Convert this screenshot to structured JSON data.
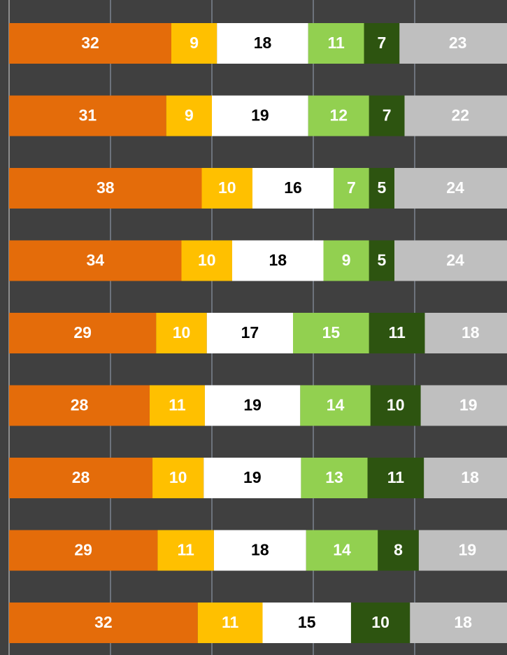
{
  "chart_data": {
    "type": "bar",
    "orientation": "horizontal",
    "stack": "percent",
    "categories": [
      null,
      null,
      null,
      null,
      null,
      null,
      null,
      null,
      null
    ],
    "xlim": [
      0,
      100
    ],
    "xticks": [
      0,
      20,
      40,
      60,
      80,
      100
    ],
    "grid": true,
    "series": [
      {
        "color": "#e46c0a",
        "label_color": "#ffffff",
        "values": [
          32,
          31,
          38,
          34,
          29,
          28,
          28,
          29,
          32
        ]
      },
      {
        "color": "#ffc000",
        "label_color": "#ffffff",
        "values": [
          9,
          9,
          10,
          10,
          10,
          11,
          10,
          11,
          11
        ]
      },
      {
        "color": "#ffffff",
        "label_color": "#000000",
        "values": [
          18,
          19,
          16,
          18,
          17,
          19,
          19,
          18,
          15
        ]
      },
      {
        "color": "#92d050",
        "label_color": "#ffffff",
        "values": [
          11,
          12,
          7,
          9,
          15,
          14,
          13,
          14,
          null
        ]
      },
      {
        "color": "#2d5410",
        "label_color": "#ffffff",
        "values": [
          7,
          7,
          5,
          5,
          11,
          10,
          11,
          8,
          10
        ]
      },
      {
        "color": "#bfbfbf",
        "label_color": "#ffffff",
        "values": [
          23,
          22,
          24,
          24,
          18,
          19,
          18,
          19,
          18
        ]
      }
    ]
  }
}
